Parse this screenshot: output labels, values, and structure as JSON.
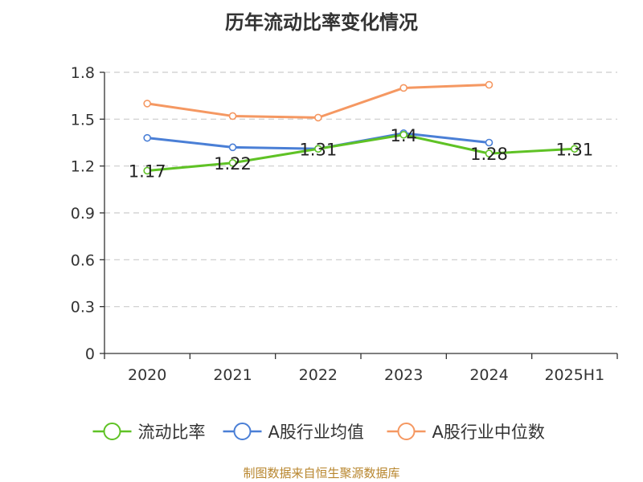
{
  "chart_data": {
    "type": "line",
    "title": "历年流动比率变化情况",
    "categories": [
      "2020",
      "2021",
      "2022",
      "2023",
      "2024",
      "2025H1"
    ],
    "ylim": [
      0,
      1.8
    ],
    "yticks": [
      "0",
      "0.3",
      "0.6",
      "0.9",
      "1.2",
      "1.5",
      "1.8"
    ],
    "grid": true,
    "legend_position": "bottom",
    "series": [
      {
        "name": "流动比率",
        "color": "#5fc225",
        "values": [
          1.17,
          1.22,
          1.31,
          1.4,
          1.28,
          1.31
        ],
        "labels": [
          "1.17",
          "1.22",
          "1.31",
          "1.4",
          "1.28",
          "1.31"
        ]
      },
      {
        "name": "A股行业均值",
        "color": "#4a7fd6",
        "values": [
          1.38,
          1.32,
          1.31,
          1.41,
          1.35,
          null
        ]
      },
      {
        "name": "A股行业中位数",
        "color": "#f59862",
        "values": [
          1.6,
          1.52,
          1.51,
          1.7,
          1.72,
          null
        ]
      }
    ]
  },
  "source_text": "制图数据来自恒生聚源数据库"
}
